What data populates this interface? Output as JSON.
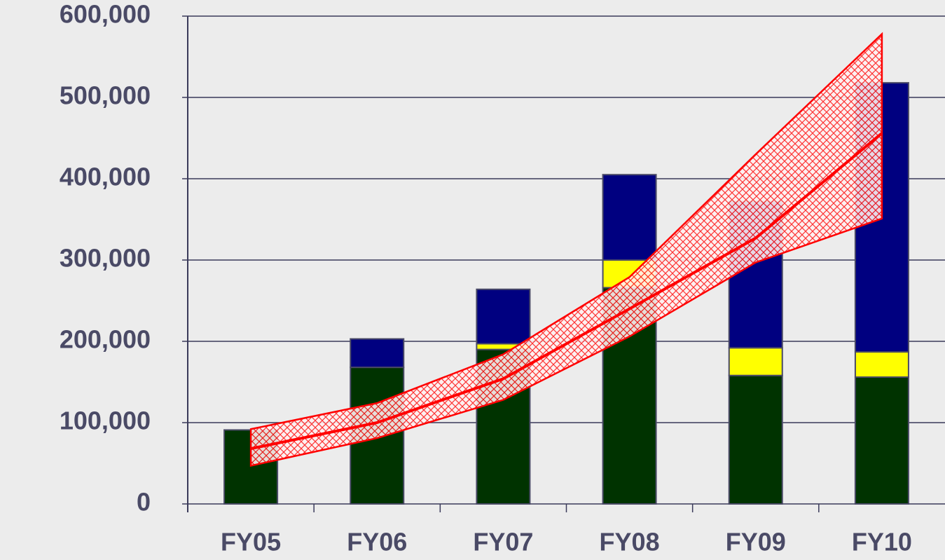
{
  "chart_data": {
    "type": "stacked_bar",
    "categories": [
      "FY05",
      "FY06",
      "FY07",
      "FY08",
      "FY09",
      "FY10"
    ],
    "series": [
      {
        "color": "#003300",
        "values": [
          91000,
          168000,
          190000,
          266000,
          158000,
          156000
        ]
      },
      {
        "color": "#ffff00",
        "values": [
          0,
          0,
          7000,
          34000,
          34000,
          31000
        ]
      },
      {
        "color": "#000080",
        "values": [
          0,
          35000,
          67000,
          105000,
          180000,
          331000
        ]
      }
    ],
    "trend": {
      "color": "#ff0000",
      "values": [
        68000,
        100000,
        154000,
        240000,
        327000,
        456000
      ],
      "upper": [
        92000,
        124000,
        184000,
        279000,
        430000,
        578000
      ],
      "lower": [
        47000,
        81000,
        128000,
        206000,
        297000,
        351000
      ]
    },
    "ylim": [
      0,
      600000
    ],
    "yticks": [
      0,
      {
        "value": 100000,
        "label": "100,000"
      },
      {
        "value": 200000,
        "label": "200,000"
      },
      {
        "value": 300000,
        "label": "300,000"
      },
      {
        "value": 400000,
        "label": "400,000"
      },
      {
        "value": 500000,
        "label": "500,000"
      },
      {
        "value": 600000,
        "label": "600,000"
      }
    ],
    "grid": true
  }
}
